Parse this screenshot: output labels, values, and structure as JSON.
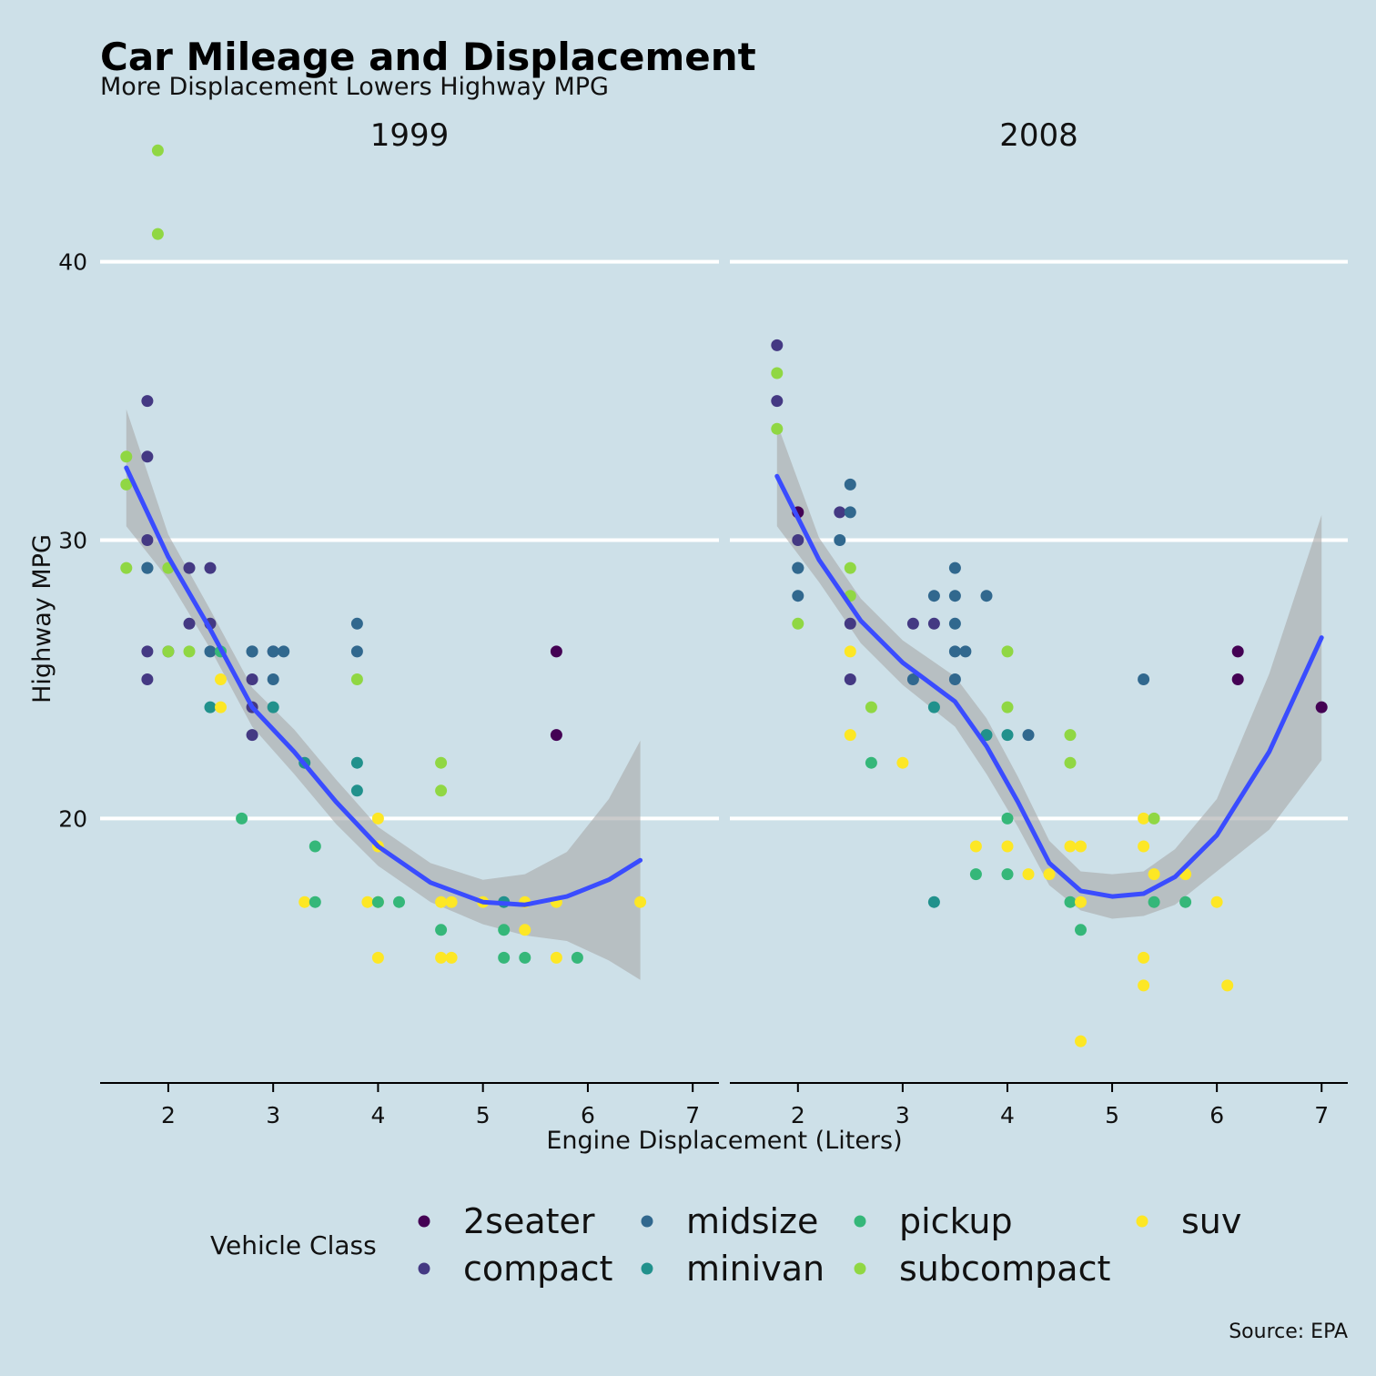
{
  "chart_data": {
    "type": "scatter",
    "title": "Car Mileage and Displacement",
    "subtitle": "More Displacement Lowers Highway MPG",
    "xlabel": "Engine Displacement (Liters)",
    "ylabel": "Highway MPG",
    "caption": "Source: EPA",
    "xlim": [
      1.35,
      7.25
    ],
    "ylim": [
      10.5,
      44.5
    ],
    "xticks": [
      2,
      3,
      4,
      5,
      6,
      7
    ],
    "yticks": [
      20,
      30,
      40
    ],
    "grid": "horizontal-major",
    "legend": {
      "title": "Vehicle Class",
      "placement": "bottom",
      "entries": [
        {
          "name": "2seater",
          "color": "#440154"
        },
        {
          "name": "compact",
          "color": "#443983"
        },
        {
          "name": "midsize",
          "color": "#31688e"
        },
        {
          "name": "minivan",
          "color": "#21918c"
        },
        {
          "name": "pickup",
          "color": "#35b779"
        },
        {
          "name": "subcompact",
          "color": "#90d743"
        },
        {
          "name": "suv",
          "color": "#fde725"
        }
      ]
    },
    "smooth_color": "#3a4cff",
    "band_color": "#a9a9a9",
    "facets": [
      {
        "label": "1999",
        "points": [
          [
            1.9,
            44,
            "subcompact"
          ],
          [
            1.9,
            41,
            "subcompact"
          ],
          [
            1.6,
            33,
            "subcompact"
          ],
          [
            1.6,
            32,
            "subcompact"
          ],
          [
            1.6,
            29,
            "subcompact"
          ],
          [
            1.8,
            35,
            "compact"
          ],
          [
            1.8,
            33,
            "compact"
          ],
          [
            1.8,
            30,
            "compact"
          ],
          [
            1.8,
            29,
            "midsize"
          ],
          [
            1.8,
            29,
            "midsize"
          ],
          [
            1.8,
            26,
            "compact"
          ],
          [
            1.8,
            25,
            "compact"
          ],
          [
            2.0,
            29,
            "subcompact"
          ],
          [
            2.0,
            26,
            "compact"
          ],
          [
            2.0,
            26,
            "subcompact"
          ],
          [
            2.2,
            29,
            "compact"
          ],
          [
            2.2,
            27,
            "compact"
          ],
          [
            2.2,
            26,
            "subcompact"
          ],
          [
            2.4,
            29,
            "compact"
          ],
          [
            2.4,
            27,
            "compact"
          ],
          [
            2.4,
            26,
            "midsize"
          ],
          [
            2.4,
            24,
            "minivan"
          ],
          [
            2.5,
            26,
            "pickup"
          ],
          [
            2.5,
            25,
            "suv"
          ],
          [
            2.5,
            24,
            "suv"
          ],
          [
            2.7,
            20,
            "pickup"
          ],
          [
            2.8,
            26,
            "midsize"
          ],
          [
            2.8,
            26,
            "midsize"
          ],
          [
            2.8,
            25,
            "compact"
          ],
          [
            2.8,
            24,
            "compact"
          ],
          [
            2.8,
            23,
            "compact"
          ],
          [
            3.0,
            26,
            "compact"
          ],
          [
            3.0,
            26,
            "midsize"
          ],
          [
            3.0,
            25,
            "midsize"
          ],
          [
            3.0,
            24,
            "minivan"
          ],
          [
            3.1,
            26,
            "midsize"
          ],
          [
            3.3,
            22,
            "minivan"
          ],
          [
            3.3,
            17,
            "suv"
          ],
          [
            3.4,
            19,
            "pickup"
          ],
          [
            3.4,
            17,
            "pickup"
          ],
          [
            3.8,
            27,
            "midsize"
          ],
          [
            3.8,
            26,
            "midsize"
          ],
          [
            3.8,
            25,
            "subcompact"
          ],
          [
            3.8,
            22,
            "minivan"
          ],
          [
            3.8,
            21,
            "minivan"
          ],
          [
            3.9,
            17,
            "suv"
          ],
          [
            4.0,
            20,
            "suv"
          ],
          [
            4.0,
            19,
            "suv"
          ],
          [
            4.0,
            17,
            "suv"
          ],
          [
            4.0,
            17,
            "pickup"
          ],
          [
            4.0,
            15,
            "suv"
          ],
          [
            4.2,
            17,
            "pickup"
          ],
          [
            4.6,
            22,
            "subcompact"
          ],
          [
            4.6,
            21,
            "subcompact"
          ],
          [
            4.6,
            17,
            "suv"
          ],
          [
            4.6,
            16,
            "pickup"
          ],
          [
            4.6,
            15,
            "suv"
          ],
          [
            4.7,
            17,
            "suv"
          ],
          [
            4.7,
            15,
            "suv"
          ],
          [
            5.0,
            17,
            "suv"
          ],
          [
            5.2,
            17,
            "minivan"
          ],
          [
            5.2,
            16,
            "pickup"
          ],
          [
            5.2,
            15,
            "pickup"
          ],
          [
            5.4,
            17,
            "suv"
          ],
          [
            5.4,
            16,
            "suv"
          ],
          [
            5.4,
            15,
            "pickup"
          ],
          [
            5.7,
            26,
            "2seater"
          ],
          [
            5.7,
            23,
            "2seater"
          ],
          [
            5.7,
            17,
            "suv"
          ],
          [
            5.7,
            15,
            "suv"
          ],
          [
            5.9,
            15,
            "pickup"
          ],
          [
            6.5,
            17,
            "suv"
          ]
        ],
        "smooth": [
          [
            1.6,
            32.6
          ],
          [
            2.0,
            29.4
          ],
          [
            2.4,
            26.8
          ],
          [
            2.8,
            24.0
          ],
          [
            3.2,
            22.4
          ],
          [
            3.6,
            20.6
          ],
          [
            4.0,
            19.0
          ],
          [
            4.5,
            17.7
          ],
          [
            5.0,
            17.0
          ],
          [
            5.4,
            16.9
          ],
          [
            5.8,
            17.2
          ],
          [
            6.2,
            17.8
          ],
          [
            6.5,
            18.5
          ]
        ],
        "band": [
          [
            1.6,
            30.5,
            34.7
          ],
          [
            2.0,
            28.6,
            30.2
          ],
          [
            2.4,
            26.1,
            27.5
          ],
          [
            2.8,
            23.3,
            24.7
          ],
          [
            3.2,
            21.6,
            23.2
          ],
          [
            3.6,
            19.8,
            21.4
          ],
          [
            4.0,
            18.3,
            19.7
          ],
          [
            4.5,
            17.0,
            18.4
          ],
          [
            5.0,
            16.2,
            17.8
          ],
          [
            5.4,
            15.8,
            18.0
          ],
          [
            5.8,
            15.6,
            18.8
          ],
          [
            6.2,
            14.9,
            20.7
          ],
          [
            6.5,
            14.2,
            22.8
          ]
        ]
      },
      {
        "label": "2008",
        "points": [
          [
            1.8,
            37,
            "compact"
          ],
          [
            1.8,
            36,
            "subcompact"
          ],
          [
            1.8,
            35,
            "compact"
          ],
          [
            1.8,
            34,
            "subcompact"
          ],
          [
            2.0,
            31,
            "2seater"
          ],
          [
            2.0,
            30,
            "compact"
          ],
          [
            2.0,
            29,
            "midsize"
          ],
          [
            2.0,
            29,
            "midsize"
          ],
          [
            2.0,
            28,
            "midsize"
          ],
          [
            2.0,
            27,
            "subcompact"
          ],
          [
            2.4,
            31,
            "compact"
          ],
          [
            2.4,
            30,
            "midsize"
          ],
          [
            2.5,
            32,
            "midsize"
          ],
          [
            2.5,
            31,
            "midsize"
          ],
          [
            2.5,
            29,
            "subcompact"
          ],
          [
            2.5,
            28,
            "subcompact"
          ],
          [
            2.5,
            27,
            "compact"
          ],
          [
            2.5,
            26,
            "suv"
          ],
          [
            2.5,
            25,
            "compact"
          ],
          [
            2.5,
            23,
            "suv"
          ],
          [
            2.7,
            24,
            "subcompact"
          ],
          [
            2.7,
            22,
            "pickup"
          ],
          [
            3.0,
            22,
            "suv"
          ],
          [
            3.1,
            27,
            "compact"
          ],
          [
            3.1,
            25,
            "midsize"
          ],
          [
            3.3,
            28,
            "midsize"
          ],
          [
            3.3,
            27,
            "compact"
          ],
          [
            3.3,
            24,
            "minivan"
          ],
          [
            3.3,
            17,
            "minivan"
          ],
          [
            3.5,
            29,
            "midsize"
          ],
          [
            3.5,
            28,
            "midsize"
          ],
          [
            3.5,
            27,
            "midsize"
          ],
          [
            3.5,
            26,
            "midsize"
          ],
          [
            3.5,
            25,
            "midsize"
          ],
          [
            3.6,
            26,
            "midsize"
          ],
          [
            3.7,
            19,
            "suv"
          ],
          [
            3.7,
            18,
            "pickup"
          ],
          [
            3.8,
            28,
            "midsize"
          ],
          [
            3.8,
            23,
            "minivan"
          ],
          [
            4.0,
            26,
            "subcompact"
          ],
          [
            4.0,
            24,
            "subcompact"
          ],
          [
            4.0,
            23,
            "minivan"
          ],
          [
            4.0,
            20,
            "pickup"
          ],
          [
            4.0,
            19,
            "suv"
          ],
          [
            4.0,
            18,
            "pickup"
          ],
          [
            4.2,
            23,
            "midsize"
          ],
          [
            4.2,
            18,
            "suv"
          ],
          [
            4.4,
            18,
            "suv"
          ],
          [
            4.6,
            23,
            "subcompact"
          ],
          [
            4.6,
            22,
            "subcompact"
          ],
          [
            4.6,
            19,
            "suv"
          ],
          [
            4.6,
            17,
            "pickup"
          ],
          [
            4.7,
            19,
            "suv"
          ],
          [
            4.7,
            17,
            "suv"
          ],
          [
            4.7,
            16,
            "pickup"
          ],
          [
            4.7,
            12,
            "suv"
          ],
          [
            5.3,
            25,
            "midsize"
          ],
          [
            5.3,
            20,
            "suv"
          ],
          [
            5.3,
            19,
            "suv"
          ],
          [
            5.3,
            15,
            "suv"
          ],
          [
            5.3,
            14,
            "suv"
          ],
          [
            5.4,
            20,
            "subcompact"
          ],
          [
            5.4,
            18,
            "suv"
          ],
          [
            5.4,
            17,
            "pickup"
          ],
          [
            5.7,
            18,
            "suv"
          ],
          [
            5.7,
            17,
            "pickup"
          ],
          [
            6.0,
            17,
            "suv"
          ],
          [
            6.1,
            14,
            "suv"
          ],
          [
            6.2,
            26,
            "2seater"
          ],
          [
            6.2,
            25,
            "2seater"
          ],
          [
            7.0,
            24,
            "2seater"
          ]
        ],
        "smooth": [
          [
            1.8,
            32.3
          ],
          [
            2.2,
            29.3
          ],
          [
            2.6,
            27.1
          ],
          [
            3.0,
            25.6
          ],
          [
            3.5,
            24.2
          ],
          [
            3.8,
            22.6
          ],
          [
            4.1,
            20.6
          ],
          [
            4.4,
            18.4
          ],
          [
            4.7,
            17.4
          ],
          [
            5.0,
            17.2
          ],
          [
            5.3,
            17.3
          ],
          [
            5.6,
            17.9
          ],
          [
            6.0,
            19.4
          ],
          [
            6.5,
            22.4
          ],
          [
            7.0,
            26.5
          ]
        ],
        "band": [
          [
            1.8,
            30.5,
            34.2
          ],
          [
            2.2,
            28.5,
            30.1
          ],
          [
            2.6,
            26.3,
            27.9
          ],
          [
            3.0,
            24.8,
            26.4
          ],
          [
            3.5,
            23.3,
            25.1
          ],
          [
            3.8,
            21.6,
            23.6
          ],
          [
            4.1,
            19.7,
            21.5
          ],
          [
            4.4,
            17.6,
            19.2
          ],
          [
            4.7,
            16.7,
            18.1
          ],
          [
            5.0,
            16.4,
            18.0
          ],
          [
            5.3,
            16.5,
            18.1
          ],
          [
            5.6,
            16.9,
            18.9
          ],
          [
            6.0,
            18.1,
            20.7
          ],
          [
            6.5,
            19.6,
            25.2
          ],
          [
            7.0,
            22.1,
            30.9
          ]
        ]
      }
    ]
  }
}
